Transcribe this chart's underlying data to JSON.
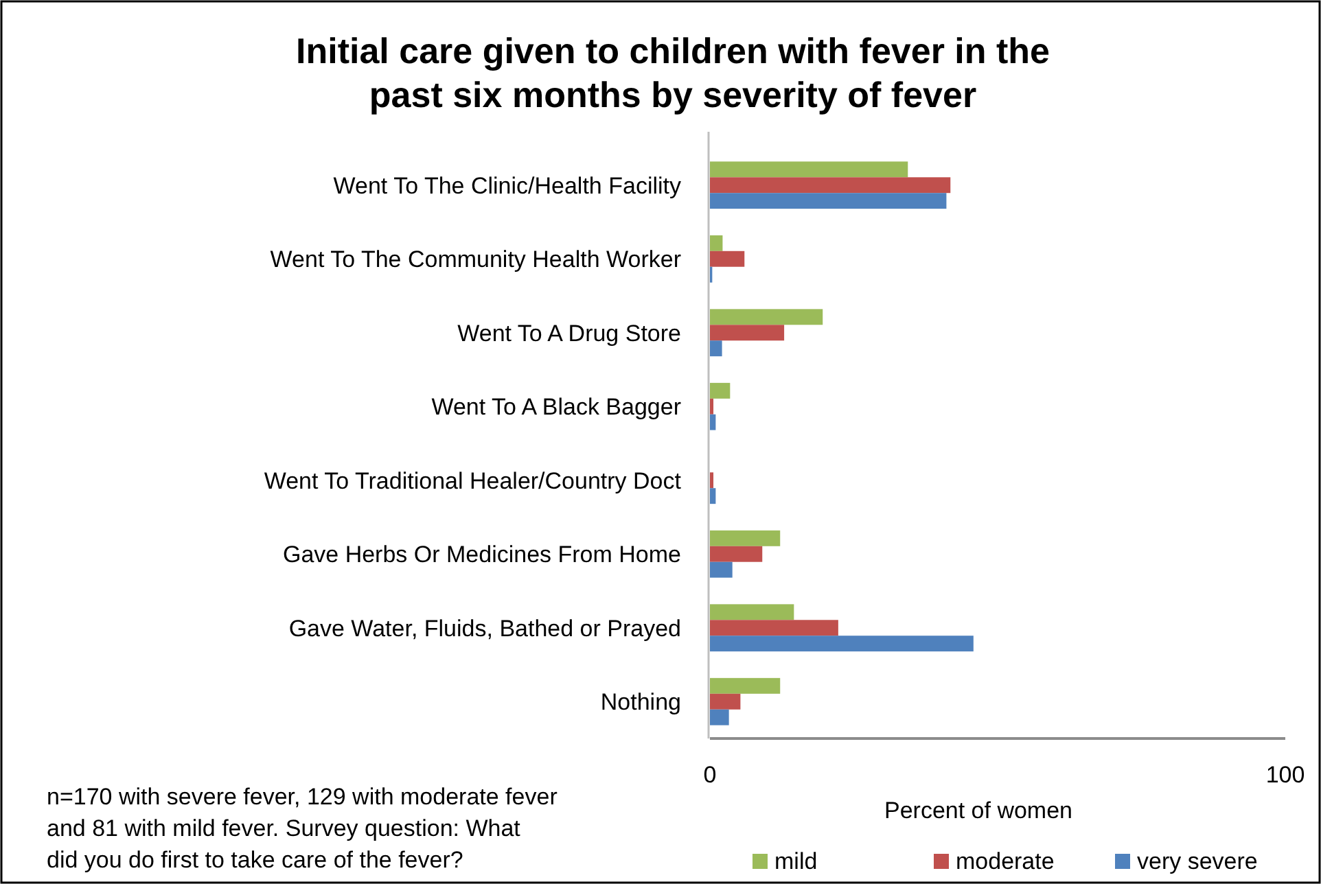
{
  "chart_data": {
    "type": "bar",
    "orientation": "horizontal",
    "title": "Initial care given to children with fever in the past six months by severity of fever",
    "xlabel": "Percent of women",
    "categories": [
      "Went To The Clinic/Health Facility",
      "Went To The Community Health Worker",
      "Went To A Drug Store",
      "Went To A Black Bagger",
      "Went To Traditional Healer/Country Doct",
      "Gave Herbs Or Medicines From Home",
      "Gave Water, Fluids, Bathed or Prayed",
      "Nothing"
    ],
    "series": [
      {
        "name": "mild",
        "color": "#9bbb59",
        "values": [
          34.4,
          2.2,
          19.6,
          3.5,
          0,
          12.2,
          14.6,
          12.2
        ]
      },
      {
        "name": "moderate",
        "color": "#c0504d",
        "values": [
          41.8,
          6.0,
          12.9,
          0.6,
          0.6,
          9.1,
          22.3,
          5.3
        ]
      },
      {
        "name": "very severe",
        "color": "#4f81bd",
        "values": [
          41.1,
          0.4,
          2.1,
          1.0,
          1.0,
          3.9,
          45.8,
          3.3
        ]
      }
    ],
    "xlim": [
      0,
      100
    ],
    "xticks": [
      0,
      100
    ],
    "grid": false,
    "legend": "bottom right",
    "annotations": [
      "n=170 with severe fever, 129 with moderate fever and 81 with mild fever. Survey question: What did you do first to take care of the fever?"
    ]
  }
}
